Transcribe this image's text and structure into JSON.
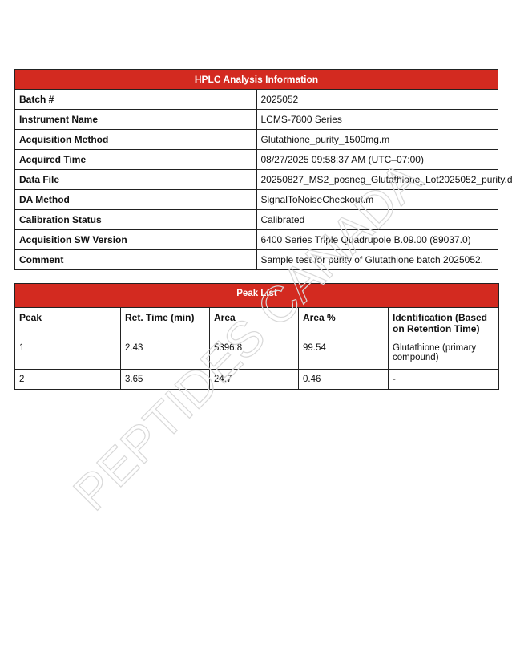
{
  "watermark": "PEPTIDES CANADA",
  "info": {
    "title": "HPLC Analysis Information",
    "rows": [
      [
        "Batch #",
        "2025052"
      ],
      [
        "Instrument Name",
        "LCMS-7800 Series"
      ],
      [
        "Acquisition Method",
        "Glutathione_purity_1500mg.m"
      ],
      [
        "Acquired Time",
        "08/27/2025 09:58:37 AM (UTC–07:00)"
      ],
      [
        "Data File",
        "20250827_MS2_posneg_Glutathione_Lot2025052_purity.d"
      ],
      [
        "DA Method",
        "SignalToNoiseCheckout.m"
      ],
      [
        "Calibration Status",
        "Calibrated"
      ],
      [
        "Acquisition SW Version",
        "6400 Series Triple Quadrupole B.09.00 (89037.0)"
      ],
      [
        "Comment",
        "Sample test for purity of Glutathione batch 2025052."
      ]
    ]
  },
  "peaks": {
    "title": "Peak List",
    "headers": [
      "Peak",
      "Ret. Time (min)",
      "Area",
      "Area %",
      "Identification (Based on Retention Time)"
    ],
    "rows": [
      [
        "1",
        "2.43",
        "5396.8",
        "99.54",
        "Glutathione (primary compound)"
      ],
      [
        "2",
        "3.65",
        "24.7",
        "0.46",
        "-"
      ]
    ]
  }
}
